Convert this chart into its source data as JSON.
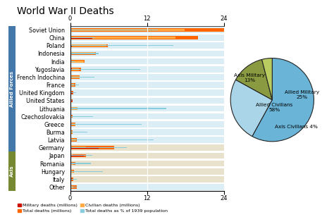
{
  "title": "World War II Deaths",
  "countries": [
    "Soviet Union",
    "China",
    "Poland",
    "Indonesia",
    "India",
    "Yugoslavia",
    "French Indochina",
    "France",
    "United Kingdom",
    "United States",
    "Lithuania",
    "Czechoslovakia",
    "Greece",
    "Burma",
    "Latvia",
    "Germany",
    "Japan",
    "Romania",
    "Hungary",
    "Italy",
    "Other"
  ],
  "military_deaths": [
    8.7,
    3.5,
    0.24,
    0.05,
    0.087,
    0.3,
    0.05,
    0.21,
    0.38,
    0.42,
    0.03,
    0.035,
    0.02,
    0.022,
    0.03,
    4.4,
    2.1,
    0.3,
    0.12,
    0.31,
    0.5
  ],
  "total_deaths": [
    26.6,
    20.0,
    5.9,
    4.0,
    2.2,
    1.7,
    1.5,
    0.81,
    0.45,
    0.42,
    1.2,
    0.34,
    0.8,
    0.37,
    1.0,
    6.9,
    2.5,
    0.83,
    0.58,
    0.46,
    1.0
  ],
  "civilian_deaths": [
    17.9,
    16.5,
    5.66,
    3.95,
    2.1,
    1.4,
    1.45,
    0.6,
    0.07,
    0.0,
    1.17,
    0.305,
    0.78,
    0.35,
    0.97,
    2.5,
    0.4,
    0.53,
    0.46,
    0.15,
    0.5
  ],
  "pct_population": [
    13.7,
    3.86,
    16.1,
    4.5,
    0.67,
    10.9,
    3.8,
    1.35,
    0.94,
    0.32,
    15.0,
    3.6,
    11.2,
    2.7,
    13.0,
    8.9,
    3.5,
    3.2,
    5.1,
    1.03,
    1.0
  ],
  "axis_countries": [
    "Germany",
    "Japan",
    "Romania",
    "Hungary",
    "Italy"
  ],
  "allied_bg": "#dceef5",
  "axis_bg": "#e8e2cc",
  "chart_bg": "#f0f0f0",
  "bar_military_color": "#cc1100",
  "bar_total_color": "#ff6600",
  "bar_civilian_color": "#ffaa44",
  "bar_pct_color": "#88ccdd",
  "allied_label_color": "#4477aa",
  "axis_label_color": "#778833",
  "pie_sizes": [
    58,
    25,
    13,
    4
  ],
  "pie_colors": [
    "#6ab4d8",
    "#aad4e8",
    "#8a9a40",
    "#b8cc60"
  ],
  "pie_labels": [
    "Allied Civilians\n58%",
    "Allied Military\n25%",
    "Axis Military\n13%",
    "Axis Civilians 4%"
  ],
  "xlim": [
    0,
    24
  ],
  "xticks": [
    0,
    12,
    24
  ],
  "figsize": [
    4.74,
    3.08
  ],
  "dpi": 100
}
